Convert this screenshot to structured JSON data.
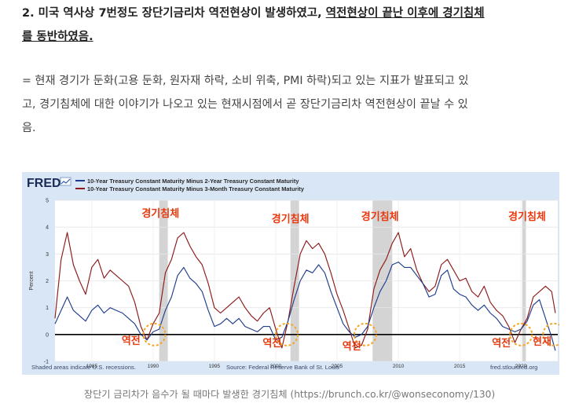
{
  "article": {
    "heading_prefix": "2. 미국 역사상 7번정도 장단기금리차 역전현상이 발생하였고, ",
    "heading_underlined_1": "역전현상이 끝난 이후에 경기침체",
    "heading_underlined_2": "를 동반하였음.",
    "paragraph_line_1": "= 현재 경기가 둔화(고용 둔화, 원자재 하락, 소비 위축, PMI 하락)되고 있는 지표가 발표되고 있",
    "paragraph_line_2": "고, 경기침체에 대한 이야기가 나오고 있는 현재시점에서 곧 장단기금리차 역전현상이 끝날 수 있",
    "paragraph_line_3": "음."
  },
  "figure": {
    "brand": "FRED",
    "footer_left": "Shaded areas indicate U.S. recessions.",
    "footer_center": "Source: Federal Reserve Bank of St. Louis",
    "footer_right": "fred.stlouisfed.org",
    "caption": "장단기 금리차가 음수가 될 때마다 발생한 경기침체 (https://brunch.co.kr/@wonseconomy/130)"
  },
  "annotations": {
    "recession_label": "경기침체",
    "inversion_label": "역전",
    "current_label": "현재",
    "color": "#e8380d"
  },
  "chart_data": {
    "type": "line",
    "ylabel": "Percent",
    "xlim": [
      1982,
      2023
    ],
    "ylim": [
      -1,
      5
    ],
    "y_ticks": [
      -1,
      0,
      1,
      2,
      3,
      4,
      5
    ],
    "x_ticks": [
      1985,
      1990,
      1995,
      2000,
      2005,
      2010,
      2015,
      2020
    ],
    "grid": true,
    "legend_position": "top-left",
    "recessions": [
      [
        1990.5,
        1991.2
      ],
      [
        2001.2,
        2001.9
      ],
      [
        2007.9,
        2009.5
      ],
      [
        2020.1,
        2020.4
      ]
    ],
    "series": [
      {
        "name": "10-Year Treasury Constant Maturity Minus 2-Year Treasury Constant Maturity",
        "color": "#1f3d8c",
        "x": [
          1982.0,
          1982.5,
          1983.0,
          1983.5,
          1984.0,
          1984.5,
          1985.0,
          1985.5,
          1986.0,
          1986.5,
          1987.0,
          1987.5,
          1988.0,
          1988.5,
          1989.0,
          1989.5,
          1990.0,
          1990.5,
          1991.0,
          1991.5,
          1992.0,
          1992.5,
          1993.0,
          1993.5,
          1994.0,
          1994.5,
          1995.0,
          1995.5,
          1996.0,
          1996.5,
          1997.0,
          1997.5,
          1998.0,
          1998.5,
          1999.0,
          1999.5,
          2000.0,
          2000.5,
          2001.0,
          2001.5,
          2002.0,
          2002.5,
          2003.0,
          2003.5,
          2004.0,
          2004.5,
          2005.0,
          2005.5,
          2006.0,
          2006.5,
          2007.0,
          2007.5,
          2008.0,
          2008.5,
          2009.0,
          2009.5,
          2010.0,
          2010.5,
          2011.0,
          2011.5,
          2012.0,
          2012.5,
          2013.0,
          2013.5,
          2014.0,
          2014.5,
          2015.0,
          2015.5,
          2016.0,
          2016.5,
          2017.0,
          2017.5,
          2018.0,
          2018.5,
          2019.0,
          2019.5,
          2020.0,
          2020.5,
          2021.0,
          2021.5,
          2022.0,
          2022.5,
          2022.8
        ],
        "y": [
          0.4,
          0.9,
          1.4,
          0.9,
          0.7,
          0.5,
          0.9,
          1.1,
          0.8,
          1.0,
          0.9,
          0.8,
          0.6,
          0.4,
          0.0,
          -0.2,
          0.1,
          0.2,
          0.9,
          1.4,
          2.2,
          2.5,
          2.1,
          1.9,
          1.6,
          0.9,
          0.3,
          0.4,
          0.6,
          0.4,
          0.6,
          0.3,
          0.2,
          0.1,
          0.3,
          0.3,
          -0.2,
          -0.1,
          0.5,
          1.3,
          2.0,
          2.4,
          2.3,
          2.6,
          2.3,
          1.6,
          1.0,
          0.4,
          0.1,
          -0.1,
          0.0,
          0.3,
          1.0,
          1.6,
          2.0,
          2.6,
          2.7,
          2.5,
          2.5,
          2.2,
          1.9,
          1.4,
          1.5,
          2.2,
          2.4,
          1.7,
          1.5,
          1.4,
          1.1,
          0.9,
          1.1,
          0.8,
          0.6,
          0.3,
          0.2,
          0.1,
          0.2,
          0.5,
          1.1,
          1.3,
          0.6,
          -0.1,
          -0.6
        ]
      },
      {
        "name": "10-Year Treasury Constant Maturity Minus 3-Month Treasury Constant Maturity",
        "color": "#8c1a1a",
        "x": [
          1982.0,
          1982.5,
          1983.0,
          1983.5,
          1984.0,
          1984.5,
          1985.0,
          1985.5,
          1986.0,
          1986.5,
          1987.0,
          1987.5,
          1988.0,
          1988.5,
          1989.0,
          1989.5,
          1990.0,
          1990.5,
          1991.0,
          1991.5,
          1992.0,
          1992.5,
          1993.0,
          1993.5,
          1994.0,
          1994.5,
          1995.0,
          1995.5,
          1996.0,
          1996.5,
          1997.0,
          1997.5,
          1998.0,
          1998.5,
          1999.0,
          1999.5,
          2000.0,
          2000.5,
          2001.0,
          2001.5,
          2002.0,
          2002.5,
          2003.0,
          2003.5,
          2004.0,
          2004.5,
          2005.0,
          2005.5,
          2006.0,
          2006.5,
          2007.0,
          2007.5,
          2008.0,
          2008.5,
          2009.0,
          2009.5,
          2010.0,
          2010.5,
          2011.0,
          2011.5,
          2012.0,
          2012.5,
          2013.0,
          2013.5,
          2014.0,
          2014.5,
          2015.0,
          2015.5,
          2016.0,
          2016.5,
          2017.0,
          2017.5,
          2018.0,
          2018.5,
          2019.0,
          2019.5,
          2020.0,
          2020.5,
          2021.0,
          2021.5,
          2022.0,
          2022.5,
          2022.8
        ],
        "y": [
          0.6,
          2.8,
          3.8,
          2.6,
          2.0,
          1.5,
          2.5,
          2.8,
          2.1,
          2.4,
          2.2,
          2.0,
          1.8,
          1.2,
          0.3,
          -0.2,
          0.4,
          0.8,
          2.3,
          2.8,
          3.6,
          3.8,
          3.3,
          2.9,
          2.6,
          1.9,
          1.0,
          0.8,
          1.0,
          1.2,
          1.4,
          1.0,
          0.7,
          0.5,
          0.8,
          1.0,
          0.2,
          -0.5,
          0.5,
          1.8,
          3.0,
          3.5,
          3.2,
          3.4,
          3.0,
          2.3,
          1.5,
          0.9,
          0.2,
          -0.5,
          -0.4,
          0.2,
          1.7,
          2.4,
          2.8,
          3.4,
          3.8,
          2.9,
          3.2,
          2.4,
          1.9,
          1.6,
          1.8,
          2.6,
          2.8,
          2.4,
          2.0,
          2.1,
          1.6,
          1.4,
          1.8,
          1.2,
          0.9,
          0.7,
          0.3,
          -0.3,
          0.2,
          0.6,
          1.4,
          1.6,
          1.8,
          1.6,
          0.8
        ]
      }
    ]
  }
}
